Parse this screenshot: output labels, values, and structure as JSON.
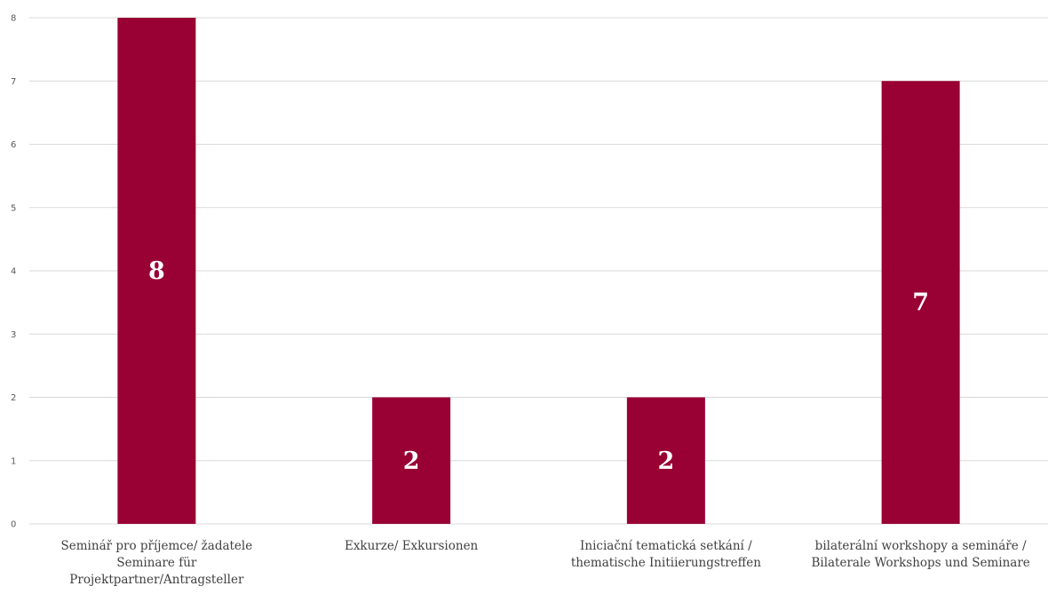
{
  "chart_data": {
    "type": "bar",
    "categories": [
      [
        "Seminář pro příjemce/ žadatele",
        "Seminare für",
        "Projektpartner/Antragsteller"
      ],
      [
        "Exkurze/ Exkursionen"
      ],
      [
        "Iniciační tematická setkání /",
        "thematische Initiierungstreffen"
      ],
      [
        "bilaterální workshopy a semináře /",
        "Bilaterale Workshops und Seminare"
      ]
    ],
    "values": [
      8,
      2,
      2,
      7
    ],
    "data_labels": [
      "8",
      "2",
      "2",
      "7"
    ],
    "y_ticks": [
      "0",
      "1",
      "2",
      "3",
      "4",
      "5",
      "6",
      "7",
      "8"
    ],
    "ylim": [
      0,
      8
    ],
    "grid": true,
    "legend": "none",
    "bar_color": "#990033",
    "title": "",
    "xlabel": "",
    "ylabel": ""
  }
}
